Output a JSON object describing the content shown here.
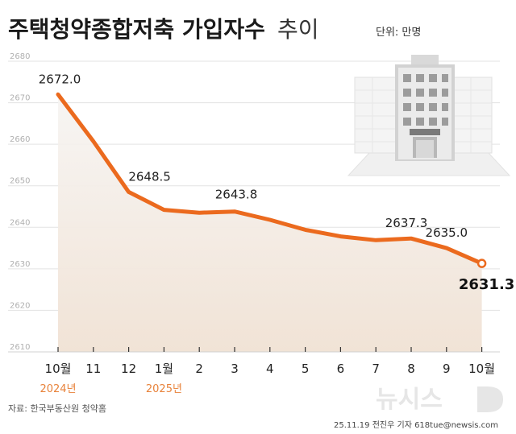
{
  "header": {
    "title_bold": "주택청약종합저축 가입자수",
    "title_light": "추이",
    "unit": "단위: 만명"
  },
  "chart_data": {
    "type": "area",
    "title": "주택청약종합저축 가입자수 추이",
    "unit": "단위: 만명",
    "categories": [
      "10월",
      "11",
      "12",
      "1월",
      "2",
      "3",
      "4",
      "5",
      "6",
      "7",
      "8",
      "9",
      "10월"
    ],
    "values": [
      2672.0,
      2660.7,
      2648.5,
      2644.2,
      2643.5,
      2643.8,
      2641.8,
      2639.4,
      2637.8,
      2636.9,
      2637.3,
      2635.0,
      2631.3
    ],
    "labels": [
      {
        "index": 0,
        "text": "2672.0"
      },
      {
        "index": 2,
        "text": "2648.5"
      },
      {
        "index": 5,
        "text": "2643.8"
      },
      {
        "index": 10,
        "text": "2637.3"
      },
      {
        "index": 11,
        "text": "2635.0"
      },
      {
        "index": 12,
        "text": "2631.3"
      }
    ],
    "year_labels": [
      {
        "index": 0,
        "text": "2024년"
      },
      {
        "index": 3,
        "text": "2025년"
      }
    ],
    "yticks": [
      2610,
      2620,
      2630,
      2640,
      2650,
      2660,
      2670,
      2680
    ],
    "ylim": [
      2610,
      2680
    ],
    "grid": true,
    "line_color": "#eb6a1e",
    "fill_color": "#f1e3d6"
  },
  "footer": {
    "source": "자료: 한국부동산원 청약홈",
    "credit": "25.11.19 전진우 기자 618tue@newsis.com",
    "logo": "뉴시스"
  }
}
